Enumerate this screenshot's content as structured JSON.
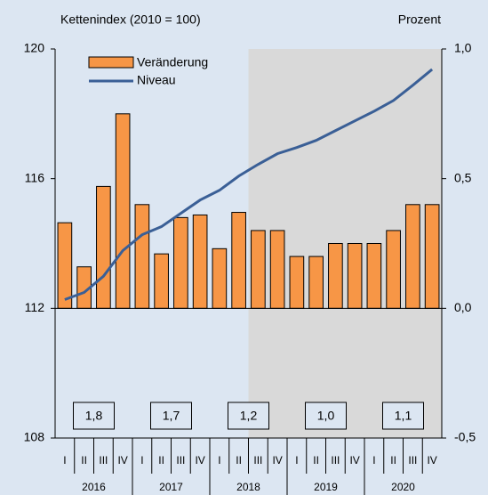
{
  "chart_data": {
    "type": "bar_line",
    "y_axis_label": "Kettenindex (2010 = 100)",
    "y2_axis_label": "Prozent",
    "categories": [
      "I",
      "II",
      "III",
      "IV",
      "I",
      "II",
      "III",
      "IV",
      "I",
      "II",
      "III",
      "IV",
      "I",
      "II",
      "III",
      "IV",
      "I",
      "II",
      "III",
      "IV"
    ],
    "years": [
      "2016",
      "2017",
      "2018",
      "2019",
      "2020"
    ],
    "annual_labels": [
      "1,8",
      "1,7",
      "1,2",
      "1,0",
      "1,1"
    ],
    "series": [
      {
        "name": "Veränderung",
        "type": "bar",
        "axis": "y2",
        "color": "#f79646",
        "values": [
          0.33,
          0.16,
          0.47,
          0.75,
          0.4,
          0.21,
          0.35,
          0.36,
          0.23,
          0.37,
          0.3,
          0.3,
          0.2,
          0.2,
          0.25,
          0.25,
          0.25,
          0.3,
          0.4,
          0.4
        ]
      },
      {
        "name": "Niveau",
        "type": "line",
        "axis": "y",
        "color": "#3a5f96",
        "values": [
          112.27,
          112.49,
          112.99,
          113.78,
          114.27,
          114.52,
          114.93,
          115.34,
          115.64,
          116.08,
          116.44,
          116.77,
          116.96,
          117.18,
          117.48,
          117.78,
          118.08,
          118.41,
          118.88,
          119.37
        ]
      }
    ],
    "ylim": [
      108,
      120
    ],
    "yticks": [
      108,
      112,
      116,
      120
    ],
    "y2lim": [
      -0.5,
      1.0
    ],
    "y2ticks": [
      {
        "value": -0.5,
        "label": "-0,5"
      },
      {
        "value": 0,
        "label": "0,0"
      },
      {
        "value": 0.5,
        "label": "0,5"
      },
      {
        "value": 1,
        "label": "1,0"
      }
    ]
  }
}
